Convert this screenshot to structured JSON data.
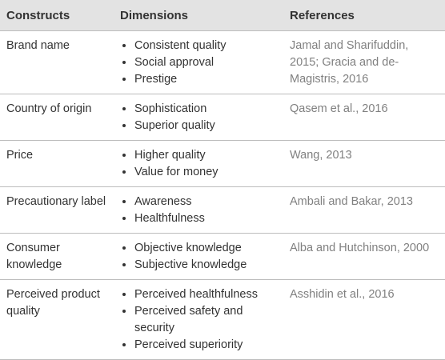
{
  "table": {
    "header": [
      "Constructs",
      "Dimensions",
      "References"
    ],
    "rows": [
      {
        "construct": "Brand name",
        "dimensions": [
          "Consistent quality",
          "Social approval",
          "Prestige"
        ],
        "reference": "Jamal and Sharifuddin, 2015; Gracia and de-Magistris, 2016"
      },
      {
        "construct": "Country of origin",
        "dimensions": [
          "Sophistication",
          "Superior quality"
        ],
        "reference": "Qasem et al., 2016"
      },
      {
        "construct": "Price",
        "dimensions": [
          "Higher quality",
          "Value for money"
        ],
        "reference": "Wang, 2013"
      },
      {
        "construct": "Precautionary label",
        "dimensions": [
          "Awareness",
          "Healthfulness"
        ],
        "reference": "Ambali and Bakar, 2013"
      },
      {
        "construct": "Consumer knowledge",
        "dimensions": [
          "Objective knowledge",
          "Subjective knowledge"
        ],
        "reference": "Alba and Hutchinson, 2000"
      },
      {
        "construct": "Perceived product quality",
        "dimensions": [
          "Perceived healthfulness",
          "Perceived safety and security",
          "Perceived superiority"
        ],
        "reference": "Asshidin et al., 2016"
      }
    ]
  }
}
